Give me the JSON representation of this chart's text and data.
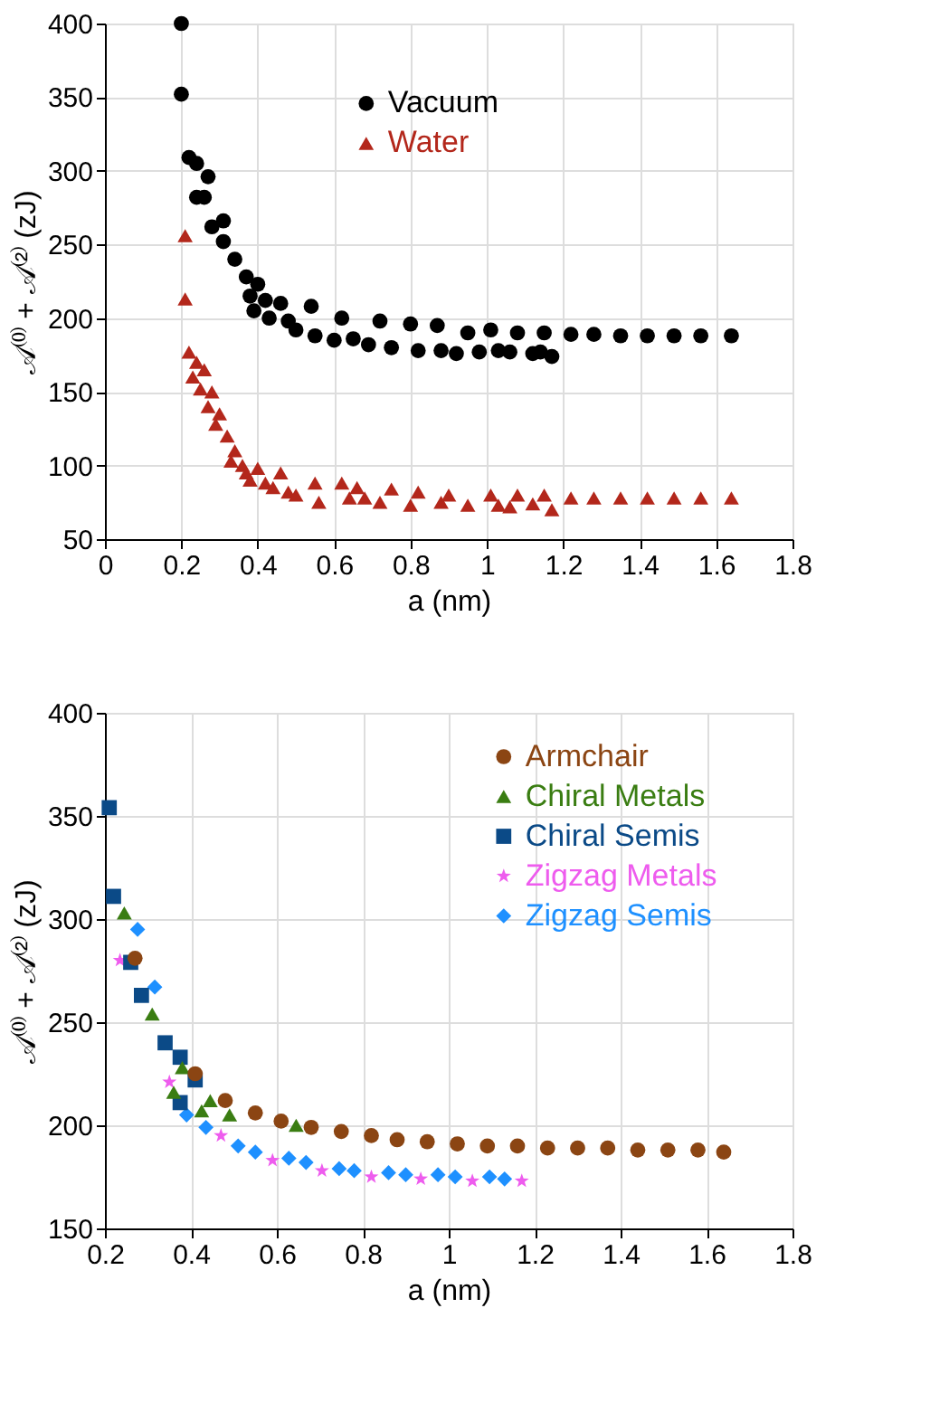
{
  "chart_data": [
    {
      "type": "scatter",
      "xlabel": "a (nm)",
      "ylabel": "𝒜⁽⁰⁾ + 𝒜⁽²⁾  (zJ)",
      "xlim": [
        0,
        1.8
      ],
      "xticks": [
        0,
        0.2,
        0.4,
        0.6,
        0.8,
        1,
        1.2,
        1.4,
        1.6,
        1.8
      ],
      "ylim": [
        50,
        400
      ],
      "yticks": [
        50,
        100,
        150,
        200,
        250,
        300,
        350,
        400
      ],
      "grid": true,
      "legend": "top",
      "series": [
        {
          "name": "Vacuum",
          "color": "#000000",
          "marker": "circle",
          "x": [
            0.2,
            0.2,
            0.22,
            0.24,
            0.27,
            0.24,
            0.26,
            0.28,
            0.31,
            0.31,
            0.34,
            0.37,
            0.38,
            0.4,
            0.39,
            0.43,
            0.42,
            0.46,
            0.48,
            0.5,
            0.54,
            0.55,
            0.6,
            0.62,
            0.65,
            0.69,
            0.72,
            0.75,
            0.8,
            0.82,
            0.88,
            0.87,
            0.92,
            0.95,
            0.98,
            1.01,
            1.03,
            1.06,
            1.08,
            1.12,
            1.14,
            1.17,
            1.15,
            1.22,
            1.28,
            1.35,
            1.42,
            1.49,
            1.56,
            1.64
          ],
          "values": [
            400,
            352,
            309,
            305,
            296,
            282,
            282,
            262,
            266,
            252,
            240,
            228,
            215,
            223,
            205,
            200,
            212,
            210,
            198,
            192,
            208,
            188,
            185,
            200,
            186,
            182,
            198,
            180,
            196,
            178,
            178,
            195,
            176,
            190,
            177,
            192,
            178,
            177,
            190,
            176,
            177,
            174,
            190,
            189,
            189,
            188,
            188,
            188,
            188,
            188
          ]
        },
        {
          "name": "Water",
          "color": "#b3271b",
          "marker": "triangle",
          "x": [
            0.21,
            0.21,
            0.22,
            0.24,
            0.23,
            0.26,
            0.25,
            0.28,
            0.27,
            0.3,
            0.29,
            0.32,
            0.34,
            0.33,
            0.36,
            0.37,
            0.38,
            0.4,
            0.42,
            0.44,
            0.46,
            0.48,
            0.5,
            0.55,
            0.56,
            0.62,
            0.64,
            0.66,
            0.68,
            0.72,
            0.75,
            0.8,
            0.82,
            0.88,
            0.9,
            0.95,
            1.01,
            1.03,
            1.06,
            1.08,
            1.12,
            1.15,
            1.17,
            1.22,
            1.28,
            1.35,
            1.42,
            1.49,
            1.56,
            1.64
          ],
          "values": [
            256,
            213,
            177,
            170,
            160,
            165,
            152,
            150,
            140,
            135,
            128,
            120,
            110,
            103,
            100,
            95,
            90,
            98,
            88,
            85,
            95,
            82,
            80,
            88,
            75,
            88,
            78,
            85,
            78,
            75,
            84,
            73,
            82,
            75,
            80,
            73,
            80,
            73,
            72,
            80,
            74,
            80,
            70,
            78,
            78,
            78,
            78,
            78,
            78,
            78
          ]
        }
      ]
    },
    {
      "type": "scatter",
      "xlabel": "a (nm)",
      "ylabel": "𝒜⁽⁰⁾ + 𝒜⁽²⁾  (zJ)",
      "xlim": [
        0.2,
        1.8
      ],
      "xticks": [
        0.2,
        0.4,
        0.6,
        0.8,
        1,
        1.2,
        1.4,
        1.6,
        1.8
      ],
      "ylim": [
        150,
        400
      ],
      "yticks": [
        150,
        200,
        250,
        300,
        350,
        400
      ],
      "grid": true,
      "legend": "top right",
      "series": [
        {
          "name": "Armchair",
          "color": "#8b4513",
          "marker": "circle",
          "x": [
            0.27,
            0.41,
            0.48,
            0.55,
            0.61,
            0.68,
            0.75,
            0.82,
            0.88,
            0.95,
            1.02,
            1.09,
            1.16,
            1.23,
            1.3,
            1.37,
            1.44,
            1.51,
            1.58,
            1.64
          ],
          "values": [
            281,
            225,
            212,
            206,
            202,
            199,
            197,
            195,
            193,
            192,
            191,
            190,
            190,
            189,
            189,
            189,
            188,
            188,
            188,
            187
          ]
        },
        {
          "name": "Chiral Metals",
          "color": "#3a7d12",
          "marker": "triangle",
          "x": [
            0.245,
            0.31,
            0.36,
            0.38,
            0.425,
            0.445,
            0.49,
            0.645
          ],
          "values": [
            303,
            254,
            216,
            228,
            207,
            212,
            205,
            200
          ]
        },
        {
          "name": "Chiral Semis",
          "color": "#0b4a87",
          "marker": "square",
          "x": [
            0.21,
            0.22,
            0.26,
            0.285,
            0.34,
            0.375,
            0.41,
            0.375
          ],
          "values": [
            354,
            311,
            279,
            263,
            240,
            233,
            222,
            211
          ]
        },
        {
          "name": "Zigzag Metals",
          "color": "#ee5cee",
          "marker": "star",
          "x": [
            0.235,
            0.35,
            0.47,
            0.59,
            0.705,
            0.82,
            0.935,
            1.055,
            1.17
          ],
          "values": [
            280,
            221,
            195,
            183,
            178,
            175,
            174,
            173,
            173
          ]
        },
        {
          "name": "Zigzag Semis",
          "color": "#1e90ff",
          "marker": "diamond",
          "x": [
            0.276,
            0.316,
            0.39,
            0.435,
            0.51,
            0.55,
            0.628,
            0.668,
            0.745,
            0.78,
            0.86,
            0.9,
            0.975,
            1.015,
            1.095,
            1.13
          ],
          "values": [
            295,
            267,
            205,
            199,
            190,
            187,
            184,
            182,
            179,
            178,
            177,
            176,
            176,
            175,
            175,
            174
          ]
        }
      ]
    }
  ]
}
